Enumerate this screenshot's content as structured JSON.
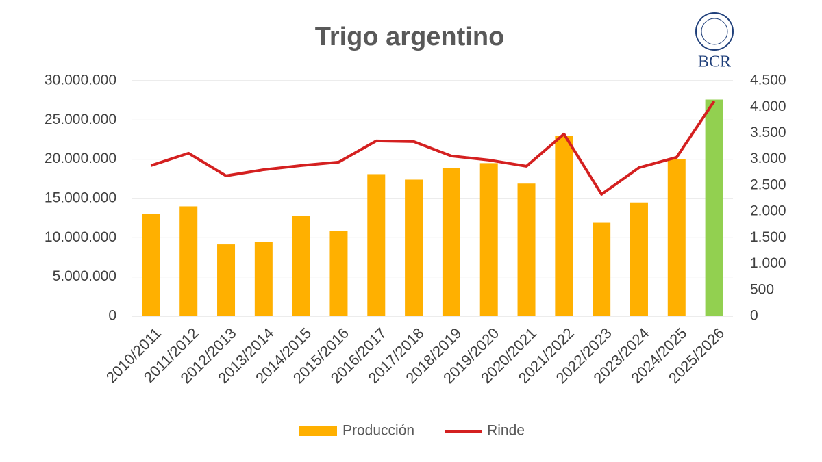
{
  "chart_data": {
    "type": "bar_line",
    "title": "Trigo argentino",
    "logo": "BCR",
    "categories": [
      "2010/2011",
      "2011/2012",
      "2012/2013",
      "2013/2014",
      "2014/2015",
      "2015/2016",
      "2016/2017",
      "2017/2018",
      "2018/2019",
      "2019/2020",
      "2020/2021",
      "2021/2022",
      "2022/2023",
      "2023/2024",
      "2024/2025",
      "2025/2026"
    ],
    "series": [
      {
        "name": "Producción",
        "type": "bar",
        "color": "#ffb000",
        "colors": [
          "#ffb000",
          "#ffb000",
          "#ffb000",
          "#ffb000",
          "#ffb000",
          "#ffb000",
          "#ffb000",
          "#ffb000",
          "#ffb000",
          "#ffb000",
          "#ffb000",
          "#ffb000",
          "#ffb000",
          "#ffb000",
          "#ffb000",
          "#92d050"
        ],
        "values": [
          13000000,
          14000000,
          9150000,
          9500000,
          12800000,
          10900000,
          18100000,
          17400000,
          18900000,
          19500000,
          16900000,
          23000000,
          11900000,
          14500000,
          20000000,
          27600000
        ]
      },
      {
        "name": "Rinde",
        "type": "line",
        "axis": "y2",
        "color": "#d42020",
        "values": [
          2880,
          3115,
          2683,
          2800,
          2880,
          2945,
          3350,
          3337,
          3063,
          2984,
          2866,
          3482,
          2330,
          2840,
          3037,
          4110
        ]
      }
    ],
    "ylim": [
      0,
      30000000
    ],
    "yticks": [
      0,
      {
        "value": 5000000,
        "label": "5.000.000"
      },
      {
        "value": 10000000,
        "label": "10.000.000"
      },
      {
        "value": 15000000,
        "label": "15.000.000"
      },
      {
        "value": 20000000,
        "label": "20.000.000"
      },
      {
        "value": 25000000,
        "label": "25.000.000"
      },
      {
        "value": 30000000,
        "label": "30.000.000"
      }
    ],
    "y2lim": [
      0,
      4500
    ],
    "y2ticks": [
      0,
      500,
      {
        "value": 1000,
        "label": "1.000"
      },
      {
        "value": 1500,
        "label": "1.500"
      },
      {
        "value": 2000,
        "label": "2.000"
      },
      {
        "value": 2500,
        "label": "2.500"
      },
      {
        "value": 3000,
        "label": "3.000"
      },
      {
        "value": 3500,
        "label": "3.500"
      },
      {
        "value": 4000,
        "label": "4.000"
      },
      {
        "value": 4500,
        "label": "4.500"
      }
    ],
    "grid": true,
    "legend": "bottom"
  }
}
